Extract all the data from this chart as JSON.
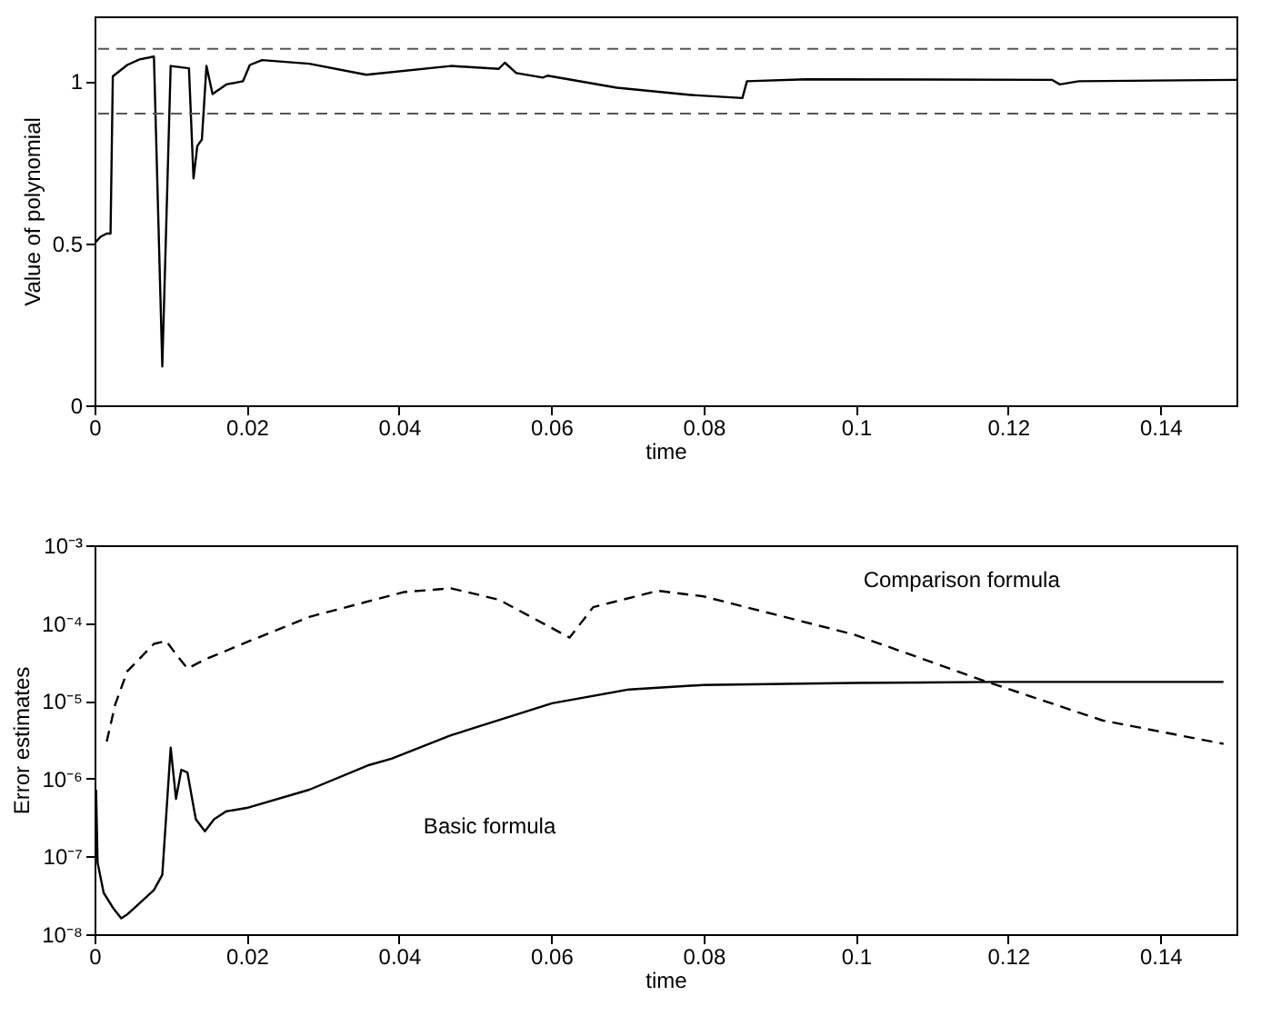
{
  "chart_data": [
    {
      "type": "line",
      "xlabel": "time",
      "ylabel": "Value of polynomial",
      "xlim": [
        0,
        0.15
      ],
      "ylim": [
        0,
        1.2
      ],
      "xticks": [
        0,
        0.02,
        0.04,
        0.06,
        0.08,
        0.1,
        0.12,
        0.14
      ],
      "yticks": [
        0,
        0.5,
        1
      ],
      "grid": false,
      "marker": "none",
      "series": [
        {
          "color": "#000000",
          "line_style": "solid",
          "x": [
            0,
            0.0008,
            0.0016,
            0.0021,
            0.0024,
            0.0043,
            0.0059,
            0.0078,
            0.0089,
            0.01,
            0.0124,
            0.013,
            0.0135,
            0.0141,
            0.0147,
            0.0155,
            0.0173,
            0.0195,
            0.0204,
            0.022,
            0.0282,
            0.0357,
            0.0468,
            0.0531,
            0.0539,
            0.0554,
            0.0589,
            0.0595,
            0.0686,
            0.078,
            0.0851,
            0.0857,
            0.0935,
            0.1258,
            0.1268,
            0.1293,
            0.15
          ],
          "values": [
            0.5,
            0.52,
            0.53,
            0.53,
            1.015,
            1.05,
            1.067,
            1.076,
            0.12,
            1.047,
            1.04,
            0.7,
            0.8,
            0.82,
            1.047,
            0.96,
            0.99,
            1.0,
            1.05,
            1.065,
            1.054,
            1.02,
            1.047,
            1.038,
            1.057,
            1.025,
            1.011,
            1.017,
            0.98,
            0.958,
            0.948,
            1.0,
            1.006,
            1.004,
            0.99,
            1.0,
            1.004
          ]
        }
      ],
      "ref_lines": [
        {
          "axis": "y",
          "value": 1.1,
          "color": "#555555",
          "line_style": "dashed"
        },
        {
          "axis": "y",
          "value": 0.9,
          "color": "#555555",
          "line_style": "dashed"
        }
      ]
    },
    {
      "type": "line",
      "xlabel": "time",
      "ylabel": "Error estimates",
      "log": "y",
      "xlim": [
        0,
        0.15
      ],
      "ylim": [
        1e-08,
        0.001
      ],
      "xticks": [
        0,
        0.02,
        0.04,
        0.06,
        0.08,
        0.1,
        0.12,
        0.14
      ],
      "yticks": [
        {
          "value": 1e-08,
          "label": "10⁻⁸"
        },
        {
          "value": 1e-07,
          "label": "10⁻⁷"
        },
        {
          "value": 1e-06,
          "label": "10⁻⁶"
        },
        {
          "value": 1e-05,
          "label": "10⁻⁵"
        },
        {
          "value": 0.0001,
          "label": "10⁻⁴"
        },
        {
          "value": 0.001,
          "label": "10⁻³"
        }
      ],
      "grid": false,
      "marker": "none",
      "series": [
        {
          "name": "Basic formula",
          "color": "#000000",
          "line_style": "solid",
          "x": [
            0.0002,
            0.0004,
            0.0012,
            0.0024,
            0.0035,
            0.0043,
            0.0055,
            0.0078,
            0.0089,
            0.01,
            0.0107,
            0.0114,
            0.0122,
            0.0133,
            0.0145,
            0.0157,
            0.0173,
            0.02,
            0.0282,
            0.0361,
            0.039,
            0.0468,
            0.0601,
            0.0702,
            0.08,
            0.0998,
            0.1184,
            0.1483
          ],
          "values": [
            7.2e-07,
            8.3e-08,
            3.4e-08,
            2.2e-08,
            1.6e-08,
            1.8e-08,
            2.3e-08,
            3.7e-08,
            5.8e-08,
            2.5e-06,
            5.5e-07,
            1.3e-06,
            1.2e-06,
            3e-07,
            2.1e-07,
            3e-07,
            3.8e-07,
            4.2e-07,
            7.2e-07,
            1.5e-06,
            1.8e-06,
            3.6e-06,
            9.3e-06,
            1.4e-05,
            1.6e-05,
            1.7e-05,
            1.75e-05,
            1.75e-05
          ]
        },
        {
          "name": "Comparison formula",
          "color": "#000000",
          "line_style": "dashed",
          "x": [
            0.0016,
            0.0027,
            0.0043,
            0.0078,
            0.0094,
            0.0106,
            0.0122,
            0.0145,
            0.0204,
            0.0282,
            0.0406,
            0.0468,
            0.0531,
            0.0624,
            0.0655,
            0.074,
            0.08,
            0.0998,
            0.1169,
            0.1324,
            0.1483
          ],
          "values": [
            3e-06,
            8.9e-06,
            2.4e-05,
            5.4e-05,
            5.9e-05,
            4.1e-05,
            2.6e-05,
            3.4e-05,
            5.9e-05,
            0.00012,
            0.00025,
            0.00028,
            0.0002,
            6.5e-05,
            0.00016,
            0.00026,
            0.00022,
            7.1e-05,
            1.8e-05,
            5.6e-06,
            2.8e-06
          ]
        }
      ]
    }
  ]
}
